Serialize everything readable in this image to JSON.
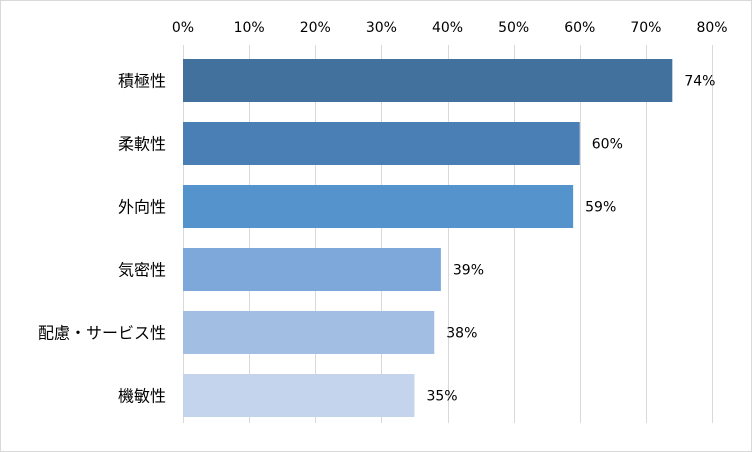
{
  "chart_data": {
    "type": "bar",
    "orientation": "horizontal",
    "categories": [
      "積極性",
      "柔軟性",
      "外向性",
      "気密性",
      "配慮・サービス性",
      "機敏性"
    ],
    "values": [
      74,
      60,
      59,
      39,
      38,
      35
    ],
    "data_labels": [
      "74%",
      "60%",
      "59%",
      "39%",
      "38%",
      "35%"
    ],
    "bar_colors": [
      "#41719C",
      "#4A7FB5",
      "#5593CC",
      "#7FA8DA",
      "#A2BEE3",
      "#C3D4EC"
    ],
    "xlim": [
      0,
      80
    ],
    "x_ticks": [
      0,
      10,
      20,
      30,
      40,
      50,
      60,
      70,
      80
    ],
    "x_tick_labels": [
      "0%",
      "10%",
      "20%",
      "30%",
      "40%",
      "50%",
      "60%",
      "70%",
      "80%"
    ],
    "x_axis_position": "top",
    "grid": true,
    "gridline_color": "#d9d9d9",
    "legend": "none"
  }
}
